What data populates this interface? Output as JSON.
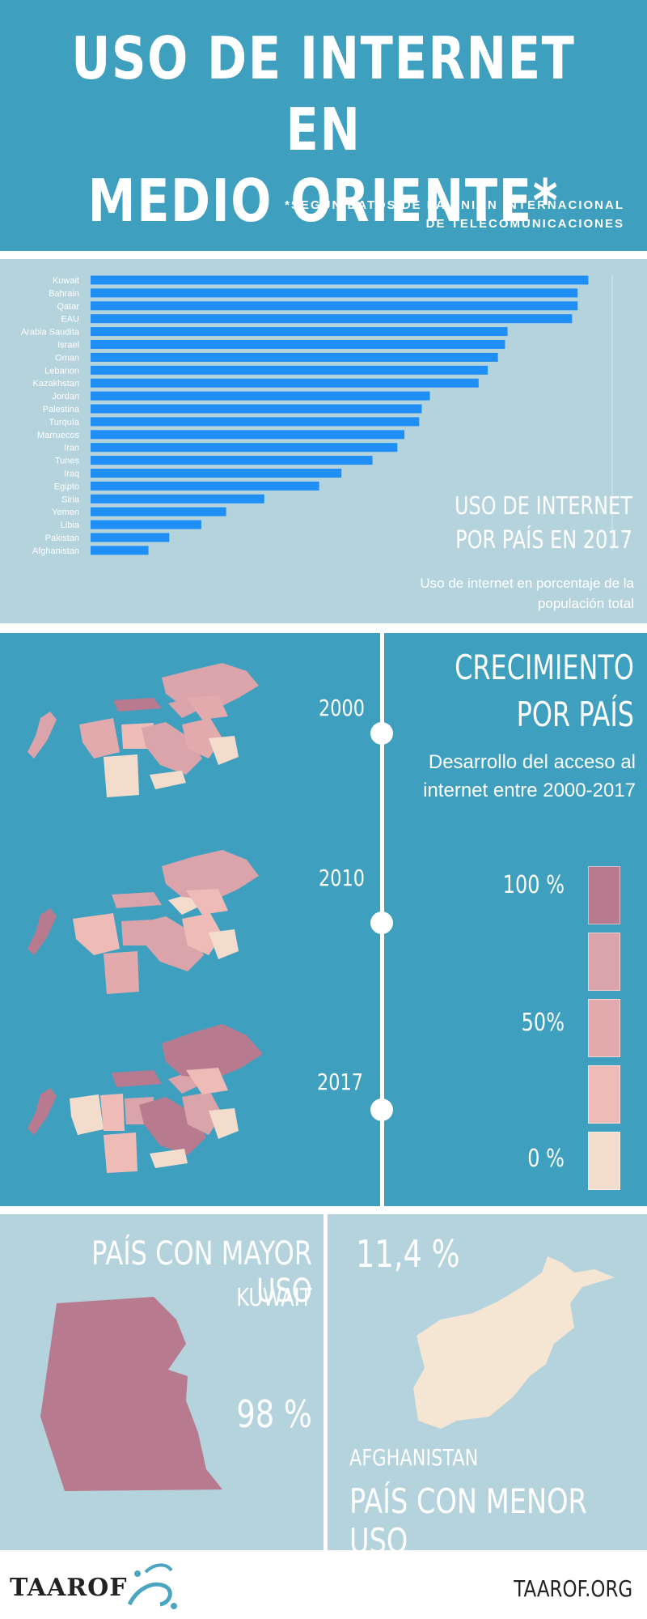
{
  "header": {
    "title_line1": "USO DE INTERNET EN",
    "title_line2": "MEDIO ORIENTE*",
    "source_line1": "*SEGÚN DATOS DE LA UNIÓN INTERNACIONAL",
    "source_line2": "DE TELECOMUNICACIONES"
  },
  "bar_section": {
    "title_line1": "USO DE INTERNET",
    "title_line2": "POR PAÍS EN 2017",
    "subtitle": "Uso de internet en porcentaje de  la populación total"
  },
  "chart_data": {
    "type": "bar",
    "orientation": "horizontal",
    "categories": [
      "Kuwait",
      "Bahrain",
      "Qatar",
      "EAU",
      "Arabia Saudita",
      "Israel",
      "Oman",
      "Lebanon",
      "Kazakhstan",
      "Jordan",
      "Palestina",
      "Turquía",
      "Marruecos",
      "Iran",
      "Tunes",
      "Iraq",
      "Egipto",
      "Siria",
      "Yemen",
      "Libia",
      "Pakistan",
      "Afghanistan"
    ],
    "values": [
      98,
      95.9,
      95.9,
      94.8,
      82.1,
      81.6,
      80.2,
      78.2,
      76.4,
      66.8,
      65.2,
      64.7,
      61.8,
      60.4,
      55.5,
      49.4,
      45.0,
      34.2,
      26.7,
      21.8,
      15.5,
      11.4
    ],
    "xlim": [
      0,
      100
    ],
    "bar_color": "#1f8ff5"
  },
  "growth_section": {
    "title_line1": "CRECIMIENTO",
    "title_line2": "POR PAÍS",
    "subtitle": "Desarrollo del acceso al internet entre 2000-2017",
    "years": [
      "2000",
      "2010",
      "2017"
    ],
    "legend": {
      "label_high": "100 %",
      "label_mid": "50%",
      "label_low": "0 %",
      "colors": [
        "#b77a8e",
        "#dba4aa",
        "#e3aaad",
        "#eebbb6",
        "#f3dccb"
      ]
    }
  },
  "extremes": {
    "max_heading": "PAÍS CON MAYOR USO",
    "max_country": "KUWAIT",
    "max_value": "98 %",
    "min_value": "11,4 %",
    "min_country": "AFGHANISTAN",
    "min_heading": "PAÍS CON MENOR USO",
    "kuwait_color": "#b77a8e",
    "afghanistan_color": "#f5e6d4"
  },
  "footer": {
    "logo": "TAAROF",
    "website": "TAAROF.ORG"
  }
}
